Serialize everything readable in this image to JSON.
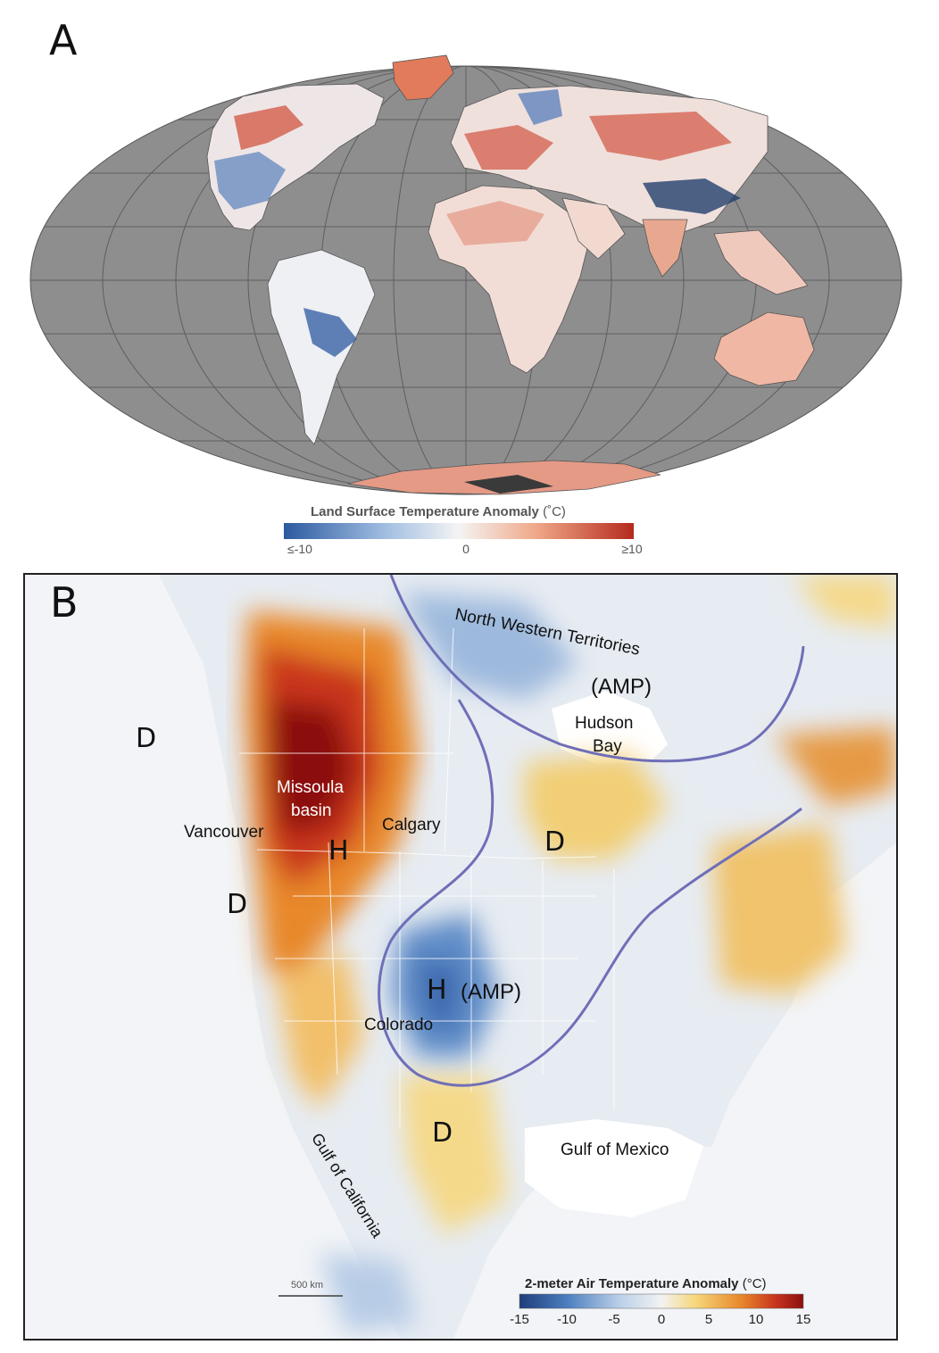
{
  "panel_a": {
    "letter": "A",
    "colorbar": {
      "title": "Land Surface Temperature Anomaly",
      "unit": "(˚C)",
      "ticks": [
        "≤-10",
        "0",
        "≥10"
      ],
      "colors": [
        "#2c5aa0",
        "#9dbbe0",
        "#f4f4f4",
        "#f0a888",
        "#b42a1e"
      ]
    },
    "colors": {
      "ocean": "#8e8e8e",
      "land_base": "#f3e9e7",
      "cold": "#3f6fb5",
      "warm": "#cf4a34"
    }
  },
  "panel_b": {
    "letter": "B",
    "labels": {
      "nwt": "North Western Territories",
      "amp_north": "(AMP)",
      "hudson": "Hudson",
      "bay": "Bay",
      "missoula": "Missoula",
      "basin": "basin",
      "calgary": "Calgary",
      "vancouver": "Vancouver",
      "colorado": "Colorado",
      "amp_south": "(AMP)",
      "gulf_mexico": "Gulf of Mexico",
      "gulf_california": "Gulf of California",
      "d_pacific": "D",
      "d_coast": "D",
      "d_central": "D",
      "d_south": "D",
      "h_north": "H",
      "h_south": "H"
    },
    "scale_bar": "500 km",
    "colorbar": {
      "title": "2-meter Air Temperature Anomaly",
      "unit": "(°C)",
      "ticks": [
        "-15",
        "-10",
        "-5",
        "0",
        "5",
        "10",
        "15"
      ],
      "colors": [
        "#1f3d7a",
        "#4e7fc0",
        "#b9cfe8",
        "#f2f2f2",
        "#f6d77a",
        "#e8882c",
        "#c9361e",
        "#8b0f0f"
      ]
    },
    "colors": {
      "contour": "#6f6fb8"
    }
  }
}
